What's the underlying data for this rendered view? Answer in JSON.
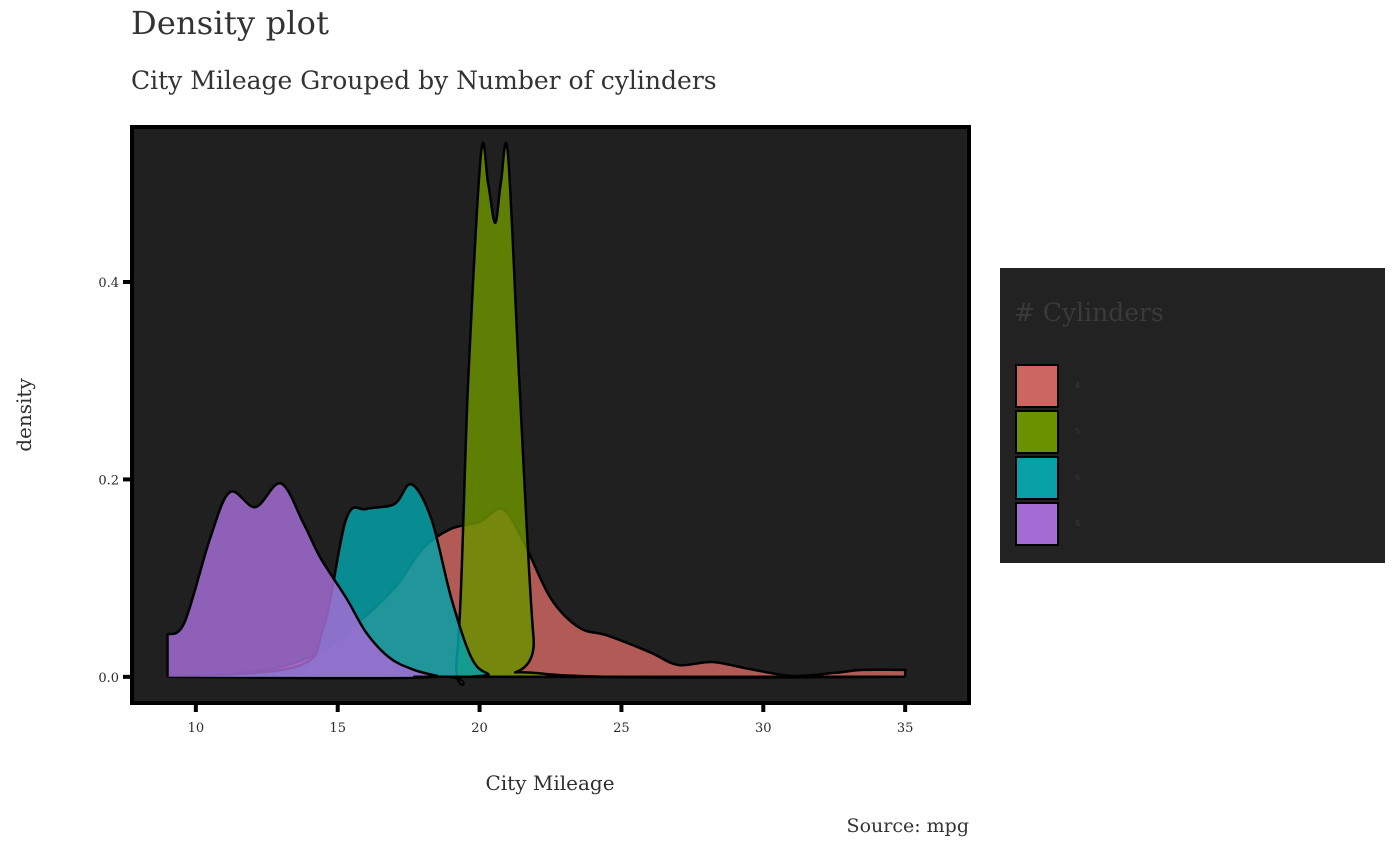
{
  "chart_data": {
    "type": "area",
    "title": "Density plot",
    "subtitle": "City Mileage Grouped by Number of cylinders",
    "caption": "Source: mpg",
    "xlabel": "City Mileage",
    "ylabel": "density",
    "xlim": [
      7.75,
      37.25
    ],
    "ylim": [
      -0.0265,
      0.557
    ],
    "x_ticks": [
      10,
      15,
      20,
      25,
      30,
      35
    ],
    "x_tick_labels": [
      "10",
      "15",
      "20",
      "25",
      "30",
      "35"
    ],
    "y_ticks": [
      0.0,
      0.2,
      0.4
    ],
    "y_tick_labels": [
      "0.0",
      "0.2",
      "0.4"
    ],
    "grid": false,
    "legend": {
      "title": "# Cylinders",
      "position": "right"
    },
    "series": [
      {
        "name": "4",
        "color": "#CC6660",
        "points": [
          [
            9,
            0
          ],
          [
            12,
            0.005
          ],
          [
            14,
            0.02
          ],
          [
            15.5,
            0.05
          ],
          [
            17,
            0.09
          ],
          [
            18,
            0.13
          ],
          [
            19,
            0.15
          ],
          [
            20,
            0.157
          ],
          [
            20.8,
            0.17
          ],
          [
            21.5,
            0.14
          ],
          [
            22.5,
            0.08
          ],
          [
            23.5,
            0.05
          ],
          [
            24.5,
            0.042
          ],
          [
            26,
            0.025
          ],
          [
            27,
            0.012
          ],
          [
            28.2,
            0.015
          ],
          [
            29.5,
            0.008
          ],
          [
            31,
            0.001
          ],
          [
            32.5,
            0.004
          ],
          [
            33.5,
            0.007
          ],
          [
            35,
            0.007
          ]
        ]
      },
      {
        "name": "5",
        "color": "#6A9100",
        "points": [
          [
            9,
            0
          ],
          [
            18.5,
            0
          ],
          [
            19.2,
            0.02
          ],
          [
            19.6,
            0.3
          ],
          [
            20.05,
            0.53
          ],
          [
            20.3,
            0.5
          ],
          [
            20.55,
            0.46
          ],
          [
            20.75,
            0.5
          ],
          [
            21.0,
            0.53
          ],
          [
            21.4,
            0.3
          ],
          [
            21.9,
            0.04
          ],
          [
            22.3,
            0.003
          ],
          [
            35,
            0
          ]
        ]
      },
      {
        "name": "6",
        "color": "#06A0A6",
        "points": [
          [
            9,
            0
          ],
          [
            13.5,
            0.01
          ],
          [
            14.5,
            0.05
          ],
          [
            15.3,
            0.16
          ],
          [
            16.0,
            0.17
          ],
          [
            17.0,
            0.175
          ],
          [
            17.6,
            0.195
          ],
          [
            18.3,
            0.16
          ],
          [
            19.0,
            0.08
          ],
          [
            19.7,
            0.02
          ],
          [
            20.3,
            0.003
          ],
          [
            21,
            0
          ],
          [
            35,
            0
          ]
        ]
      },
      {
        "name": "8",
        "color": "#A36CD4",
        "points": [
          [
            9,
            0.043
          ],
          [
            9.6,
            0.055
          ],
          [
            10.5,
            0.14
          ],
          [
            11.2,
            0.187
          ],
          [
            12.1,
            0.172
          ],
          [
            13.0,
            0.196
          ],
          [
            13.8,
            0.155
          ],
          [
            14.4,
            0.12
          ],
          [
            15.3,
            0.08
          ],
          [
            16.0,
            0.045
          ],
          [
            16.8,
            0.02
          ],
          [
            17.6,
            0.008
          ],
          [
            18.5,
            0.001
          ],
          [
            19,
            0
          ],
          [
            35,
            0
          ]
        ]
      }
    ]
  }
}
